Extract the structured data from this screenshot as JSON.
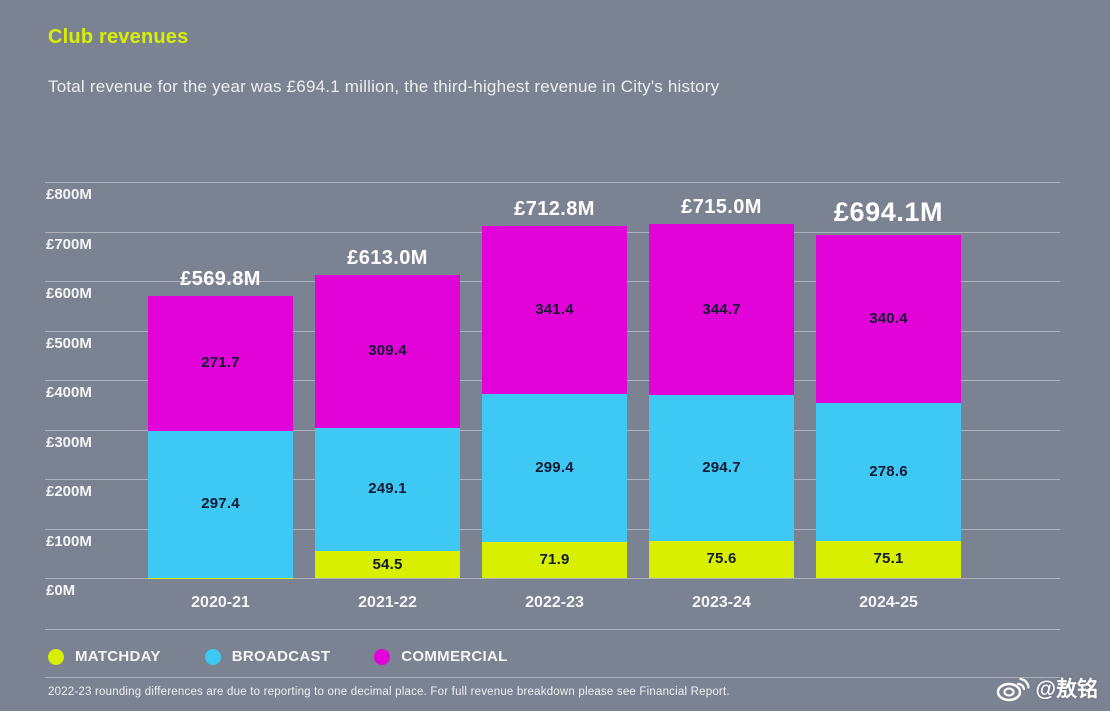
{
  "header": {
    "title": "Club revenues",
    "subtitle": "Total revenue for the year was £694.1 million, the third-highest revenue in City's history"
  },
  "chart_data": {
    "type": "bar",
    "stacked": true,
    "title": "Club revenues",
    "categories": [
      "2020-21",
      "2021-22",
      "2022-23",
      "2023-24",
      "2024-25"
    ],
    "series": [
      {
        "name": "MATCHDAY",
        "color": "#d9ef00",
        "values": [
          0.7,
          54.5,
          71.9,
          75.6,
          75.1
        ]
      },
      {
        "name": "BROADCAST",
        "color": "#3ec8f4",
        "values": [
          297.4,
          249.1,
          299.4,
          294.7,
          278.6
        ]
      },
      {
        "name": "COMMERCIAL",
        "color": "#e103d8",
        "values": [
          271.7,
          309.4,
          341.4,
          344.7,
          340.4
        ]
      }
    ],
    "totals": [
      {
        "label": "£569.8M",
        "emphasized": false
      },
      {
        "label": "£613.0M",
        "emphasized": false
      },
      {
        "label": "£712.8M",
        "emphasized": false
      },
      {
        "label": "£715.0M",
        "emphasized": false
      },
      {
        "label": "£694.1M",
        "emphasized": true
      }
    ],
    "yticks": [
      {
        "value": 800,
        "label": "£800M"
      },
      {
        "value": 700,
        "label": "£700M"
      },
      {
        "value": 600,
        "label": "£600M"
      },
      {
        "value": 500,
        "label": "£500M"
      },
      {
        "value": 400,
        "label": "£400M"
      },
      {
        "value": 300,
        "label": "£300M"
      },
      {
        "value": 200,
        "label": "£200M"
      },
      {
        "value": 100,
        "label": "£100M"
      },
      {
        "value": 0,
        "label": "£0M"
      }
    ],
    "ylim": [
      0,
      800
    ],
    "grid": true,
    "legend_position": "bottom",
    "value_unit": "£M"
  },
  "footnote": "2022-23 rounding differences are due to reporting to one decimal place. For full revenue breakdown please see Financial Report.",
  "watermark": {
    "handle": "@敖铭"
  },
  "colors": {
    "background": "#7b8393",
    "title_accent": "#d9ef00",
    "matchday": "#d9ef00",
    "broadcast": "#3ec8f4",
    "commercial": "#e103d8",
    "bar_value_text": "#151a32",
    "text": "#f4f5f7"
  }
}
